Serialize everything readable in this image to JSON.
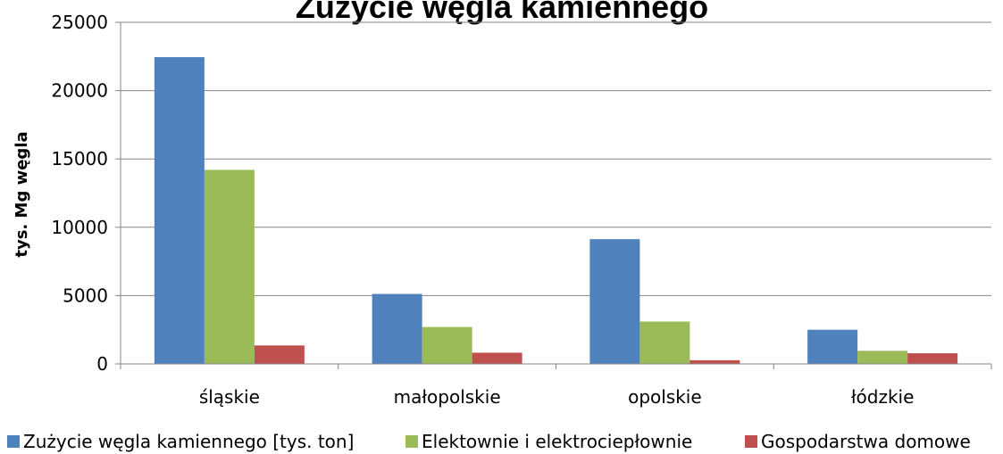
{
  "chart_data": {
    "type": "bar",
    "title": "Zużycie węgla kamiennego",
    "ylabel": "tys. Mg węgla",
    "xlabel": "",
    "categories": [
      "śląskie",
      "małopolskie",
      "opolskie",
      "łódzkie"
    ],
    "ylim": [
      0,
      25000
    ],
    "yticks": [
      "0",
      "5000",
      "10000",
      "15000",
      "20000",
      "25000"
    ],
    "grid": true,
    "legend_position": "bottom",
    "series": [
      {
        "name": "Zużycie węgla kamiennego [tys. ton]",
        "color": "#4f81bd",
        "values": [
          22450,
          5120,
          9130,
          2500
        ]
      },
      {
        "name": "Elektownie i elektrociepłownie",
        "color": "#9bbb59",
        "values": [
          14200,
          2700,
          3100,
          960
        ]
      },
      {
        "name": "Gospodarstwa domowe",
        "color": "#c0504d",
        "values": [
          1350,
          820,
          270,
          780
        ]
      }
    ]
  }
}
